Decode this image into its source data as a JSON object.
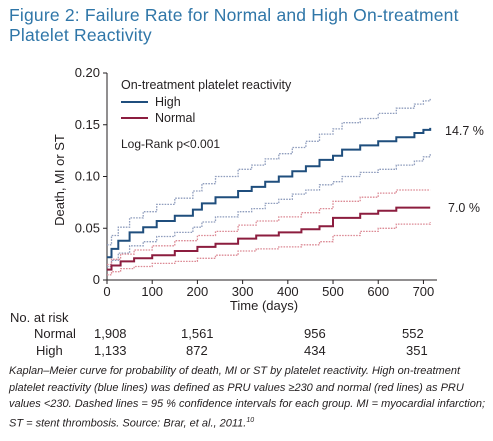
{
  "figure": {
    "title_line1": "Figure 2: Failure Rate for Normal and High On-treatment",
    "title_line2": "Platelet Reactivity"
  },
  "colors": {
    "high": "#1f4e7d",
    "high_ci": "#8f9dbd",
    "normal": "#8c1d3f",
    "normal_ci": "#dc8a95",
    "title": "#2f76a8"
  },
  "chart_data": {
    "type": "line",
    "step": true,
    "xlabel": "Time (days)",
    "ylabel": "Death, MI or ST",
    "xlim": [
      0,
      730
    ],
    "ylim": [
      0,
      0.2
    ],
    "xticks": [
      "0",
      "100",
      "200",
      "300",
      "400",
      "500",
      "600",
      "700"
    ],
    "yticks": [
      "0",
      "0.05",
      "0.10",
      "0.15",
      "0.20"
    ],
    "grid": false,
    "legend": {
      "title": "On-treatment platelet reactivity",
      "placement": "top-left",
      "entries": [
        "High",
        "Normal"
      ]
    },
    "annotation": "Log-Rank p<0.001",
    "end_labels": {
      "high": "14.7 %",
      "normal": "7.0 %"
    },
    "series": [
      {
        "name": "High",
        "style": "solid",
        "color": "#1f4e7d",
        "x": [
          0,
          10,
          25,
          50,
          80,
          110,
          150,
          190,
          210,
          240,
          290,
          320,
          350,
          380,
          410,
          440,
          470,
          500,
          520,
          560,
          600,
          640,
          680,
          700,
          715
        ],
        "y": [
          0.022,
          0.03,
          0.038,
          0.046,
          0.051,
          0.057,
          0.062,
          0.068,
          0.074,
          0.08,
          0.086,
          0.09,
          0.095,
          0.1,
          0.105,
          0.11,
          0.116,
          0.12,
          0.126,
          0.13,
          0.134,
          0.138,
          0.142,
          0.145,
          0.147
        ]
      },
      {
        "name": "High upper 95% CI",
        "style": "dashed",
        "color": "#8f9dbd",
        "x": [
          0,
          10,
          25,
          50,
          80,
          110,
          150,
          190,
          210,
          240,
          290,
          320,
          350,
          380,
          410,
          440,
          470,
          500,
          520,
          560,
          600,
          640,
          680,
          700,
          715
        ],
        "y": [
          0.034,
          0.043,
          0.051,
          0.06,
          0.066,
          0.073,
          0.079,
          0.086,
          0.093,
          0.1,
          0.107,
          0.111,
          0.117,
          0.122,
          0.128,
          0.134,
          0.141,
          0.146,
          0.152,
          0.156,
          0.161,
          0.166,
          0.17,
          0.173,
          0.175
        ]
      },
      {
        "name": "High lower 95% CI",
        "style": "dashed",
        "color": "#8f9dbd",
        "x": [
          0,
          10,
          25,
          50,
          80,
          110,
          150,
          190,
          210,
          240,
          290,
          320,
          350,
          380,
          410,
          440,
          470,
          500,
          520,
          560,
          600,
          640,
          680,
          700,
          715
        ],
        "y": [
          0.013,
          0.019,
          0.026,
          0.033,
          0.037,
          0.042,
          0.046,
          0.051,
          0.056,
          0.061,
          0.066,
          0.069,
          0.074,
          0.078,
          0.083,
          0.087,
          0.092,
          0.095,
          0.1,
          0.104,
          0.107,
          0.111,
          0.115,
          0.119,
          0.122
        ]
      },
      {
        "name": "Normal",
        "style": "solid",
        "color": "#8c1d3f",
        "x": [
          0,
          10,
          30,
          60,
          100,
          150,
          200,
          240,
          290,
          330,
          380,
          430,
          470,
          500,
          560,
          600,
          640,
          715
        ],
        "y": [
          0.01,
          0.014,
          0.018,
          0.021,
          0.024,
          0.028,
          0.032,
          0.035,
          0.04,
          0.043,
          0.046,
          0.049,
          0.052,
          0.06,
          0.064,
          0.067,
          0.07,
          0.07
        ]
      },
      {
        "name": "Normal upper 95% CI",
        "style": "dashed",
        "color": "#dc8a95",
        "x": [
          0,
          10,
          30,
          60,
          100,
          150,
          200,
          240,
          290,
          330,
          380,
          430,
          470,
          500,
          560,
          600,
          640,
          715
        ],
        "y": [
          0.015,
          0.02,
          0.025,
          0.029,
          0.033,
          0.038,
          0.043,
          0.047,
          0.053,
          0.057,
          0.061,
          0.065,
          0.069,
          0.076,
          0.08,
          0.084,
          0.087,
          0.087
        ]
      },
      {
        "name": "Normal lower 95% CI",
        "style": "dashed",
        "color": "#dc8a95",
        "x": [
          0,
          10,
          30,
          60,
          100,
          150,
          200,
          240,
          290,
          330,
          380,
          430,
          470,
          500,
          560,
          600,
          640,
          715
        ],
        "y": [
          0.005,
          0.008,
          0.011,
          0.013,
          0.016,
          0.018,
          0.021,
          0.024,
          0.028,
          0.03,
          0.032,
          0.034,
          0.037,
          0.043,
          0.047,
          0.05,
          0.054,
          0.056
        ]
      }
    ]
  },
  "risk_table": {
    "heading": "No. at risk",
    "rows": [
      {
        "label": "Normal",
        "values": [
          "1,908",
          "1,561",
          "956",
          "552"
        ]
      },
      {
        "label": "High",
        "values": [
          "1,133",
          "872",
          "434",
          "351"
        ]
      }
    ]
  },
  "caption": {
    "text": "Kaplan–Meier curve for probability of death, MI or ST by platelet reactivity. High on-treatment platelet reactivity (blue lines) was defined as PRU values ≥230 and normal (red lines) as PRU values <230. Dashed lines = 95 % confidence intervals for each group. MI = myocardial infarction; ST = stent thrombosis. Source: Brar, et al., 2011.",
    "ref": "10"
  }
}
